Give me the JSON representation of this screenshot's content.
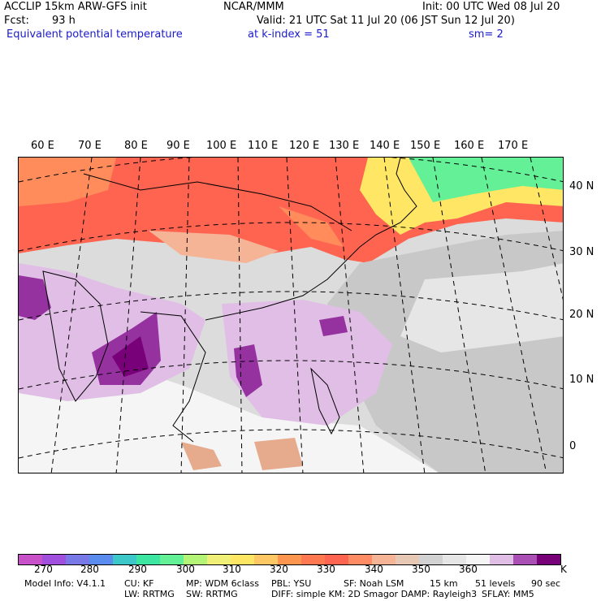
{
  "header": {
    "model": "ACCLIP 15km ARW-GFS init",
    "org": "NCAR/MMM",
    "init": "Init: 00 UTC Wed 08 Jul 20",
    "fcst_label": "Fcst:",
    "fcst_value": "93 h",
    "valid": "Valid: 21 UTC Sat 11 Jul 20 (06 JST Sun 12 Jul 20)",
    "field": "Equivalent potential temperature",
    "level": "at k-index =  51",
    "smooth": "sm= 2"
  },
  "map": {
    "lon_labels": [
      "60 E",
      "70 E",
      "80 E",
      "90 E",
      "100 E",
      "110 E",
      "120 E",
      "130 E",
      "140 E",
      "150 E",
      "160 E",
      "170 E"
    ],
    "lat_labels": [
      "40 N",
      "30 N",
      "20 N",
      "10 N",
      "0"
    ],
    "colors": {
      "hot_red": "#ff6450",
      "red_orange": "#ff8c5a",
      "peach": "#f5b496",
      "yellow": "#ffe664",
      "green": "#64f096",
      "lightgray": "#dcdcdc",
      "gray": "#c8c8c8",
      "white": "#f5f5f5",
      "lavender": "#e0bee6",
      "purple": "#9632a0",
      "darkpurple": "#780078",
      "land_tan": "#e6aa8c"
    }
  },
  "colorbar": {
    "colors": [
      "#c850c8",
      "#a050dc",
      "#7878e6",
      "#5a8cf0",
      "#3cc8c8",
      "#3ce6a0",
      "#64f096",
      "#b4f578",
      "#f0f078",
      "#ffe664",
      "#ffc864",
      "#ff9650",
      "#ff7850",
      "#ff6450",
      "#ff8c64",
      "#f5b496",
      "#e6c8b4",
      "#d2d2d2",
      "#e6e6e6",
      "#f5f5f5",
      "#e0bee6",
      "#aa50b4",
      "#780078"
    ],
    "labels": [
      "270",
      "280",
      "290",
      "300",
      "310",
      "320",
      "330",
      "340",
      "350",
      "360"
    ],
    "unit": "K"
  },
  "footer": {
    "model_info": "Model Info: V4.1.1",
    "cu": "CU: KF",
    "mp": "MP: WDM 6class",
    "pbl": "PBL: YSU",
    "sf": "SF: Noah LSM",
    "res": "15 km",
    "levels": "51 levels",
    "dt": "90 sec",
    "lw": "LW: RRTMG",
    "sw": "SW: RRTMG",
    "diff": "DIFF: simple KM: 2D Smagor DAMP: Rayleigh3",
    "sflay": "SFLAY: MM5"
  }
}
